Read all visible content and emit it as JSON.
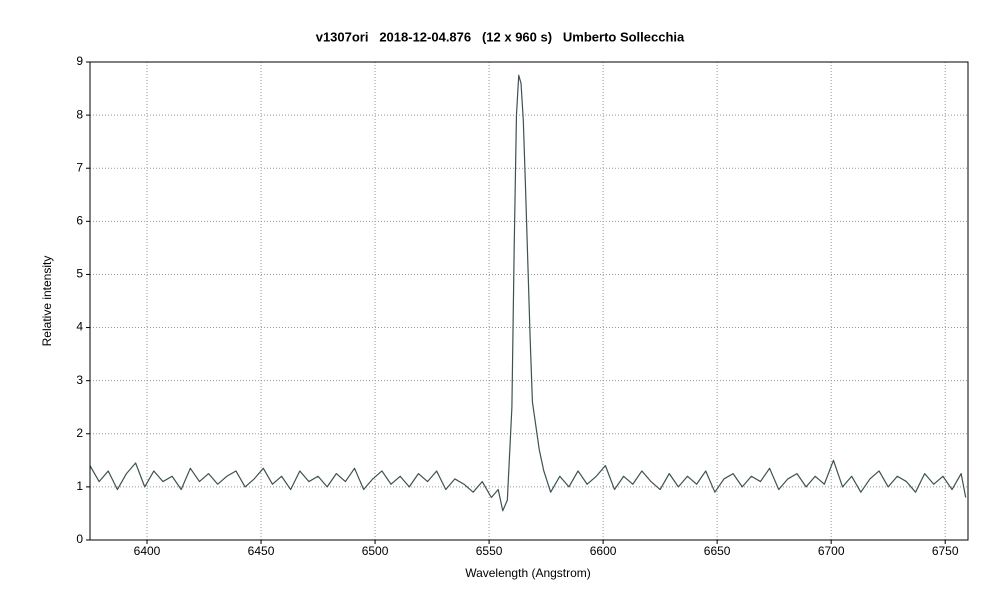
{
  "chart_data": {
    "type": "line",
    "title": "v1307ori   2018-12-04.876   (12 x 960 s)   Umberto Sollecchia",
    "x_label": "Wavelength (Angstrom)",
    "y_label": "Relative intensity",
    "grid": true,
    "xlim": [
      6375,
      6760
    ],
    "ylim": [
      0,
      9
    ],
    "xticks": [
      6400,
      6450,
      6500,
      6550,
      6600,
      6650,
      6700,
      6750
    ],
    "yticks": [
      0,
      1,
      2,
      3,
      4,
      5,
      6,
      7,
      8,
      9
    ],
    "x": [
      6375,
      6379,
      6383,
      6387,
      6391,
      6395,
      6399,
      6403,
      6407,
      6411,
      6415,
      6419,
      6423,
      6427,
      6431,
      6435,
      6439,
      6443,
      6447,
      6451,
      6455,
      6459,
      6463,
      6467,
      6471,
      6475,
      6479,
      6483,
      6487,
      6491,
      6495,
      6499,
      6503,
      6507,
      6511,
      6515,
      6519,
      6523,
      6527,
      6531,
      6535,
      6539,
      6543,
      6547,
      6551,
      6554,
      6556,
      6558,
      6560,
      6561,
      6562,
      6563,
      6564,
      6565,
      6566,
      6567,
      6568,
      6569,
      6570,
      6572,
      6574,
      6577,
      6581,
      6585,
      6589,
      6593,
      6597,
      6601,
      6605,
      6609,
      6613,
      6617,
      6621,
      6625,
      6629,
      6633,
      6637,
      6641,
      6645,
      6649,
      6653,
      6657,
      6661,
      6665,
      6669,
      6673,
      6677,
      6681,
      6685,
      6689,
      6693,
      6697,
      6701,
      6705,
      6709,
      6713,
      6717,
      6721,
      6725,
      6729,
      6733,
      6737,
      6741,
      6745,
      6749,
      6753,
      6757,
      6759
    ],
    "series": [
      {
        "color": "#3d5252",
        "values": [
          1.4,
          1.1,
          1.3,
          0.95,
          1.25,
          1.45,
          1.0,
          1.3,
          1.1,
          1.2,
          0.95,
          1.35,
          1.1,
          1.25,
          1.05,
          1.2,
          1.3,
          1.0,
          1.15,
          1.35,
          1.05,
          1.2,
          0.95,
          1.3,
          1.1,
          1.2,
          1.0,
          1.25,
          1.1,
          1.35,
          0.95,
          1.15,
          1.3,
          1.05,
          1.2,
          1.0,
          1.25,
          1.1,
          1.3,
          0.95,
          1.15,
          1.05,
          0.9,
          1.1,
          0.8,
          0.95,
          0.55,
          0.75,
          2.5,
          5.5,
          8.0,
          8.75,
          8.6,
          7.9,
          6.6,
          5.2,
          3.8,
          2.6,
          2.3,
          1.7,
          1.3,
          0.9,
          1.2,
          1.0,
          1.3,
          1.05,
          1.2,
          1.4,
          0.95,
          1.2,
          1.05,
          1.3,
          1.1,
          0.95,
          1.25,
          1.0,
          1.2,
          1.05,
          1.3,
          0.9,
          1.15,
          1.25,
          1.0,
          1.2,
          1.1,
          1.35,
          0.95,
          1.15,
          1.25,
          1.0,
          1.2,
          1.05,
          1.5,
          1.0,
          1.2,
          0.9,
          1.15,
          1.3,
          1.0,
          1.2,
          1.1,
          0.9,
          1.25,
          1.05,
          1.2,
          0.95,
          1.25,
          0.8
        ]
      }
    ]
  }
}
